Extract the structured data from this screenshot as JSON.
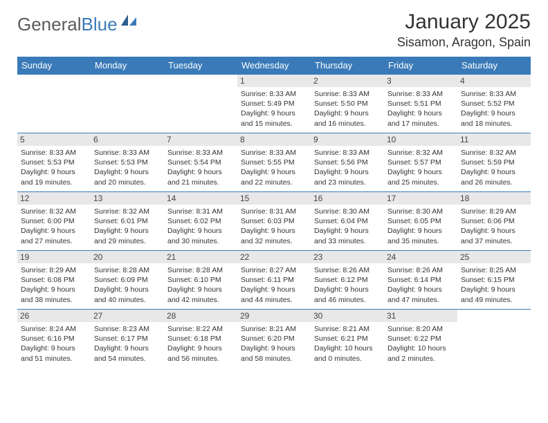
{
  "logo": {
    "general": "General",
    "blue": "Blue"
  },
  "title": "January 2025",
  "location": "Sisamon, Aragon, Spain",
  "dayHeaders": [
    "Sunday",
    "Monday",
    "Tuesday",
    "Wednesday",
    "Thursday",
    "Friday",
    "Saturday"
  ],
  "colors": {
    "accent": "#3a7ab8",
    "gray": "#e8e8e8"
  },
  "weeks": [
    [
      {
        "n": "",
        "sr": "",
        "ss": "",
        "dl": ""
      },
      {
        "n": "",
        "sr": "",
        "ss": "",
        "dl": ""
      },
      {
        "n": "",
        "sr": "",
        "ss": "",
        "dl": ""
      },
      {
        "n": "1",
        "sr": "Sunrise: 8:33 AM",
        "ss": "Sunset: 5:49 PM",
        "dl": "Daylight: 9 hours and 15 minutes."
      },
      {
        "n": "2",
        "sr": "Sunrise: 8:33 AM",
        "ss": "Sunset: 5:50 PM",
        "dl": "Daylight: 9 hours and 16 minutes."
      },
      {
        "n": "3",
        "sr": "Sunrise: 8:33 AM",
        "ss": "Sunset: 5:51 PM",
        "dl": "Daylight: 9 hours and 17 minutes."
      },
      {
        "n": "4",
        "sr": "Sunrise: 8:33 AM",
        "ss": "Sunset: 5:52 PM",
        "dl": "Daylight: 9 hours and 18 minutes."
      }
    ],
    [
      {
        "n": "5",
        "sr": "Sunrise: 8:33 AM",
        "ss": "Sunset: 5:53 PM",
        "dl": "Daylight: 9 hours and 19 minutes."
      },
      {
        "n": "6",
        "sr": "Sunrise: 8:33 AM",
        "ss": "Sunset: 5:53 PM",
        "dl": "Daylight: 9 hours and 20 minutes."
      },
      {
        "n": "7",
        "sr": "Sunrise: 8:33 AM",
        "ss": "Sunset: 5:54 PM",
        "dl": "Daylight: 9 hours and 21 minutes."
      },
      {
        "n": "8",
        "sr": "Sunrise: 8:33 AM",
        "ss": "Sunset: 5:55 PM",
        "dl": "Daylight: 9 hours and 22 minutes."
      },
      {
        "n": "9",
        "sr": "Sunrise: 8:33 AM",
        "ss": "Sunset: 5:56 PM",
        "dl": "Daylight: 9 hours and 23 minutes."
      },
      {
        "n": "10",
        "sr": "Sunrise: 8:32 AM",
        "ss": "Sunset: 5:57 PM",
        "dl": "Daylight: 9 hours and 25 minutes."
      },
      {
        "n": "11",
        "sr": "Sunrise: 8:32 AM",
        "ss": "Sunset: 5:59 PM",
        "dl": "Daylight: 9 hours and 26 minutes."
      }
    ],
    [
      {
        "n": "12",
        "sr": "Sunrise: 8:32 AM",
        "ss": "Sunset: 6:00 PM",
        "dl": "Daylight: 9 hours and 27 minutes."
      },
      {
        "n": "13",
        "sr": "Sunrise: 8:32 AM",
        "ss": "Sunset: 6:01 PM",
        "dl": "Daylight: 9 hours and 29 minutes."
      },
      {
        "n": "14",
        "sr": "Sunrise: 8:31 AM",
        "ss": "Sunset: 6:02 PM",
        "dl": "Daylight: 9 hours and 30 minutes."
      },
      {
        "n": "15",
        "sr": "Sunrise: 8:31 AM",
        "ss": "Sunset: 6:03 PM",
        "dl": "Daylight: 9 hours and 32 minutes."
      },
      {
        "n": "16",
        "sr": "Sunrise: 8:30 AM",
        "ss": "Sunset: 6:04 PM",
        "dl": "Daylight: 9 hours and 33 minutes."
      },
      {
        "n": "17",
        "sr": "Sunrise: 8:30 AM",
        "ss": "Sunset: 6:05 PM",
        "dl": "Daylight: 9 hours and 35 minutes."
      },
      {
        "n": "18",
        "sr": "Sunrise: 8:29 AM",
        "ss": "Sunset: 6:06 PM",
        "dl": "Daylight: 9 hours and 37 minutes."
      }
    ],
    [
      {
        "n": "19",
        "sr": "Sunrise: 8:29 AM",
        "ss": "Sunset: 6:08 PM",
        "dl": "Daylight: 9 hours and 38 minutes."
      },
      {
        "n": "20",
        "sr": "Sunrise: 8:28 AM",
        "ss": "Sunset: 6:09 PM",
        "dl": "Daylight: 9 hours and 40 minutes."
      },
      {
        "n": "21",
        "sr": "Sunrise: 8:28 AM",
        "ss": "Sunset: 6:10 PM",
        "dl": "Daylight: 9 hours and 42 minutes."
      },
      {
        "n": "22",
        "sr": "Sunrise: 8:27 AM",
        "ss": "Sunset: 6:11 PM",
        "dl": "Daylight: 9 hours and 44 minutes."
      },
      {
        "n": "23",
        "sr": "Sunrise: 8:26 AM",
        "ss": "Sunset: 6:12 PM",
        "dl": "Daylight: 9 hours and 46 minutes."
      },
      {
        "n": "24",
        "sr": "Sunrise: 8:26 AM",
        "ss": "Sunset: 6:14 PM",
        "dl": "Daylight: 9 hours and 47 minutes."
      },
      {
        "n": "25",
        "sr": "Sunrise: 8:25 AM",
        "ss": "Sunset: 6:15 PM",
        "dl": "Daylight: 9 hours and 49 minutes."
      }
    ],
    [
      {
        "n": "26",
        "sr": "Sunrise: 8:24 AM",
        "ss": "Sunset: 6:16 PM",
        "dl": "Daylight: 9 hours and 51 minutes."
      },
      {
        "n": "27",
        "sr": "Sunrise: 8:23 AM",
        "ss": "Sunset: 6:17 PM",
        "dl": "Daylight: 9 hours and 54 minutes."
      },
      {
        "n": "28",
        "sr": "Sunrise: 8:22 AM",
        "ss": "Sunset: 6:18 PM",
        "dl": "Daylight: 9 hours and 56 minutes."
      },
      {
        "n": "29",
        "sr": "Sunrise: 8:21 AM",
        "ss": "Sunset: 6:20 PM",
        "dl": "Daylight: 9 hours and 58 minutes."
      },
      {
        "n": "30",
        "sr": "Sunrise: 8:21 AM",
        "ss": "Sunset: 6:21 PM",
        "dl": "Daylight: 10 hours and 0 minutes."
      },
      {
        "n": "31",
        "sr": "Sunrise: 8:20 AM",
        "ss": "Sunset: 6:22 PM",
        "dl": "Daylight: 10 hours and 2 minutes."
      },
      {
        "n": "",
        "sr": "",
        "ss": "",
        "dl": ""
      }
    ]
  ]
}
